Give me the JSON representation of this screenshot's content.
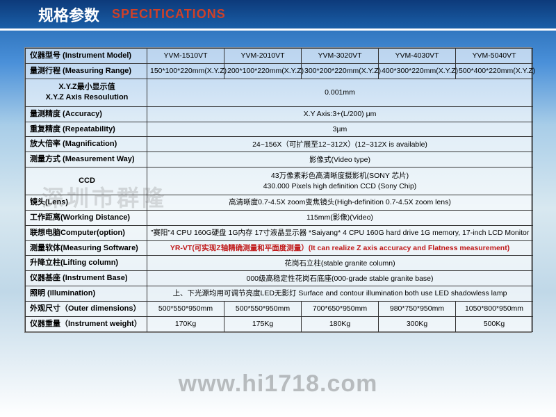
{
  "header": {
    "cn": "规格参数",
    "en": "SPECITICATIONS"
  },
  "cols": {
    "label": 175,
    "c": 111
  },
  "rows": [
    {
      "label": "仪器型号 (Instrument Model)",
      "cells": [
        "YVM-1510VT",
        "YVM-2010VT",
        "YVM-3020VT",
        "YVM-4030VT",
        "YVM-5040VT"
      ]
    },
    {
      "label": "量测行程 (Measuring Range)",
      "cells": [
        "150*100*220mm(X.Y.Z)",
        "200*100*220mm(X.Y.Z)",
        "300*200*220mm(X.Y.Z)",
        "400*300*220mm(X.Y.Z)",
        "500*400*220mm(X.Y.Z)"
      ]
    },
    {
      "label": "X.Y.Z最小显示值\nX.Y.Z Axis Resoulution",
      "span": "0.001mm",
      "tall": true,
      "center_label": true
    },
    {
      "label": "量测精度 (Accuracy)",
      "span": "X.Y Axis:3+(L/200) μm"
    },
    {
      "label": "重复精度 (Repeatability)",
      "span": "3µm"
    },
    {
      "label": "放大倍率 (Magnification)",
      "span": "24~156X（可扩展至12~312X）(12~312X is available)"
    },
    {
      "label": "测量方式 (Measurement Way)",
      "span": "影像式(Video type)"
    },
    {
      "label": "CCD",
      "span": "43万像素彩色高清晰度摄影机(SONY 芯片)\n430.000 Pixels high definition CCD (Sony Chip)",
      "tall": true,
      "center_label": true
    },
    {
      "label": "镜头(Lens)",
      "span": "高清晰度0.7-4.5X zoom变焦镜头(High-definition 0.7-4.5X zoom lens)"
    },
    {
      "label": "工作距离(Working Distance)",
      "span": "115mm(影像)(Video)"
    },
    {
      "label": "联想电脑Computer(option)",
      "span": "\"赛阳\"4 CPU 160G硬盘 1G内存 17寸液晶显示器 *Saiyang* 4 CPU 160G hard drive 1G memory, 17-inch LCD Monitor"
    },
    {
      "label": "测量软体(Measuring Software)",
      "span": "YR-VT(可实现Z轴精确测量和平面度测量）(It can realize Z axis accuracy and Flatness measurement)",
      "red": true
    },
    {
      "label": "升降立柱(Lifting column)",
      "span": "花岗石立柱(stable granite column)"
    },
    {
      "label": "仪器基座 (Instrument Base)",
      "span": "000级高稳定性花岗石底座(000-grade stable granite base)"
    },
    {
      "label": "照明 (Illumination)",
      "span": "上、下光源均用可调节亮度LED无影灯 Surface and contour illumination both use LED shadowless lamp"
    },
    {
      "label": "外观尺寸（Outer dimensions）",
      "cells": [
        "500*550*950mm",
        "500*550*950mm",
        "700*650*950mm",
        "980*750*950mm",
        "1050*800*950mm"
      ]
    },
    {
      "label": "仪器重量（Instrument weight）",
      "cells": [
        "170Kg",
        "175Kg",
        "180Kg",
        "300Kg",
        "500Kg"
      ]
    }
  ],
  "watermark": "www.hi1718.com",
  "watermark2": "深圳市群隆"
}
